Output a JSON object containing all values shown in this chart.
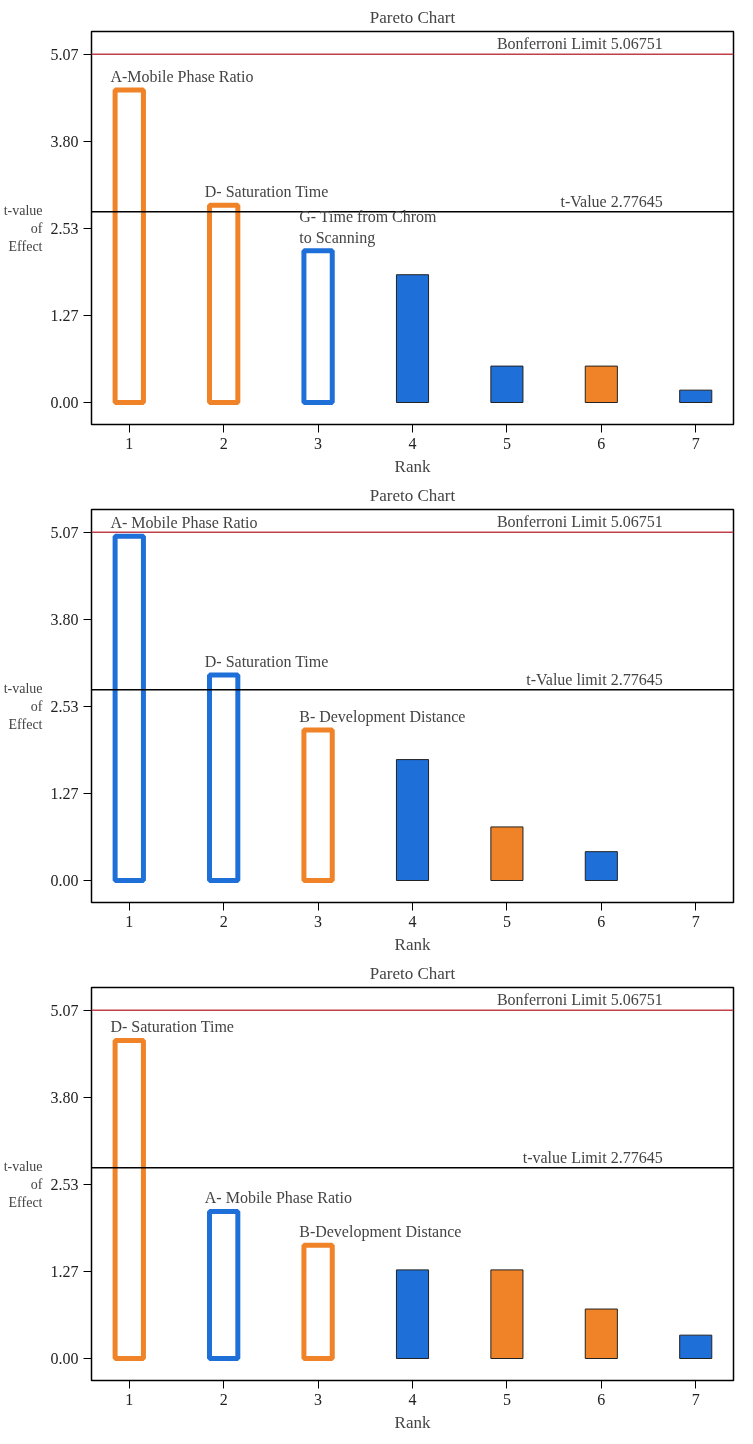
{
  "chart_data": [
    {
      "type": "bar",
      "title": "Pareto Chart",
      "xlabel": "Rank",
      "ylabel": "t-value\nof\nEffect",
      "categories": [
        "1",
        "2",
        "3",
        "4",
        "5",
        "6",
        "7"
      ],
      "values": [
        4.55,
        2.87,
        2.21,
        1.86,
        0.53,
        0.53,
        0.18
      ],
      "colors": [
        "#f08228",
        "#f08228",
        "#1f6fd8",
        "#1f6fd8",
        "#1f6fd8",
        "#f08228",
        "#1f6fd8"
      ],
      "ylim": [
        -0.32,
        5.4
      ],
      "yticks": [
        {
          "value": 0,
          "label": "0.00"
        },
        {
          "value": 1.27,
          "label": "1.27"
        },
        {
          "value": 2.53,
          "label": "2.53"
        },
        {
          "value": 3.8,
          "label": "3.80"
        },
        {
          "value": 5.07,
          "label": "5.07"
        }
      ],
      "ref_lines": [
        {
          "axis": "y",
          "value": 5.06751,
          "label": "Bonferroni Limit 5.06751",
          "color": "#c0404a"
        },
        {
          "axis": "y",
          "value": 2.77645,
          "label": "t-Value 2.77645",
          "color": "#000000"
        }
      ],
      "annotations": [
        {
          "text": "A-Mobile Phase Ratio",
          "x": "1",
          "y": 4.55
        },
        {
          "text": "D- Saturation Time",
          "x": "2",
          "y": 2.87
        },
        {
          "text": "G- Time from Chrom\nto Scanning",
          "x": "3",
          "y": 2.21
        }
      ],
      "grid": false
    },
    {
      "type": "bar",
      "title": "Pareto Chart",
      "xlabel": "Rank",
      "ylabel": "t-value\nof\nEffect",
      "categories": [
        "1",
        "2",
        "3",
        "4",
        "5",
        "6",
        "7"
      ],
      "values": [
        5.01,
        2.99,
        2.19,
        1.76,
        0.78,
        0.42,
        null
      ],
      "colors": [
        "#1f6fd8",
        "#1f6fd8",
        "#f08228",
        "#1f6fd8",
        "#f08228",
        "#1f6fd8",
        "#1f6fd8"
      ],
      "ylim": [
        -0.32,
        5.4
      ],
      "yticks": [
        {
          "value": 0,
          "label": "0.00"
        },
        {
          "value": 1.27,
          "label": "1.27"
        },
        {
          "value": 2.53,
          "label": "2.53"
        },
        {
          "value": 3.8,
          "label": "3.80"
        },
        {
          "value": 5.07,
          "label": "5.07"
        }
      ],
      "ref_lines": [
        {
          "axis": "y",
          "value": 5.06751,
          "label": "Bonferroni Limit 5.06751",
          "color": "#c0404a"
        },
        {
          "axis": "y",
          "value": 2.77645,
          "label": "t-Value limit 2.77645",
          "color": "#000000"
        }
      ],
      "annotations": [
        {
          "text": "A- Mobile Phase Ratio",
          "x": "1",
          "y": 5.01
        },
        {
          "text": "D- Saturation Time",
          "x": "2",
          "y": 2.99
        },
        {
          "text": "B- Development Distance",
          "x": "3",
          "y": 2.19
        }
      ],
      "grid": false
    },
    {
      "type": "bar",
      "title": "Pareto Chart",
      "xlabel": "Rank",
      "ylabel": "t-value\nof\nEffect",
      "categories": [
        "1",
        "2",
        "3",
        "4",
        "5",
        "6",
        "7"
      ],
      "values": [
        4.63,
        2.14,
        1.65,
        1.29,
        1.29,
        0.72,
        0.34
      ],
      "colors": [
        "#f08228",
        "#1f6fd8",
        "#f08228",
        "#1f6fd8",
        "#f08228",
        "#f08228",
        "#1f6fd8"
      ],
      "ylim": [
        -0.32,
        5.4
      ],
      "yticks": [
        {
          "value": 0,
          "label": "0.00"
        },
        {
          "value": 1.27,
          "label": "1.27"
        },
        {
          "value": 2.53,
          "label": "2.53"
        },
        {
          "value": 3.8,
          "label": "3.80"
        },
        {
          "value": 5.07,
          "label": "5.07"
        }
      ],
      "ref_lines": [
        {
          "axis": "y",
          "value": 5.06751,
          "label": "Bonferroni Limit 5.06751",
          "color": "#c0404a"
        },
        {
          "axis": "y",
          "value": 2.77645,
          "label": "t-value Limit 2.77645",
          "color": "#000000"
        }
      ],
      "annotations": [
        {
          "text": "D- Saturation Time",
          "x": "1",
          "y": 4.63
        },
        {
          "text": "A- Mobile Phase Ratio",
          "x": "2",
          "y": 2.14
        },
        {
          "text": "B-Development Distance",
          "x": "3",
          "y": 1.65
        }
      ],
      "grid": false
    }
  ]
}
